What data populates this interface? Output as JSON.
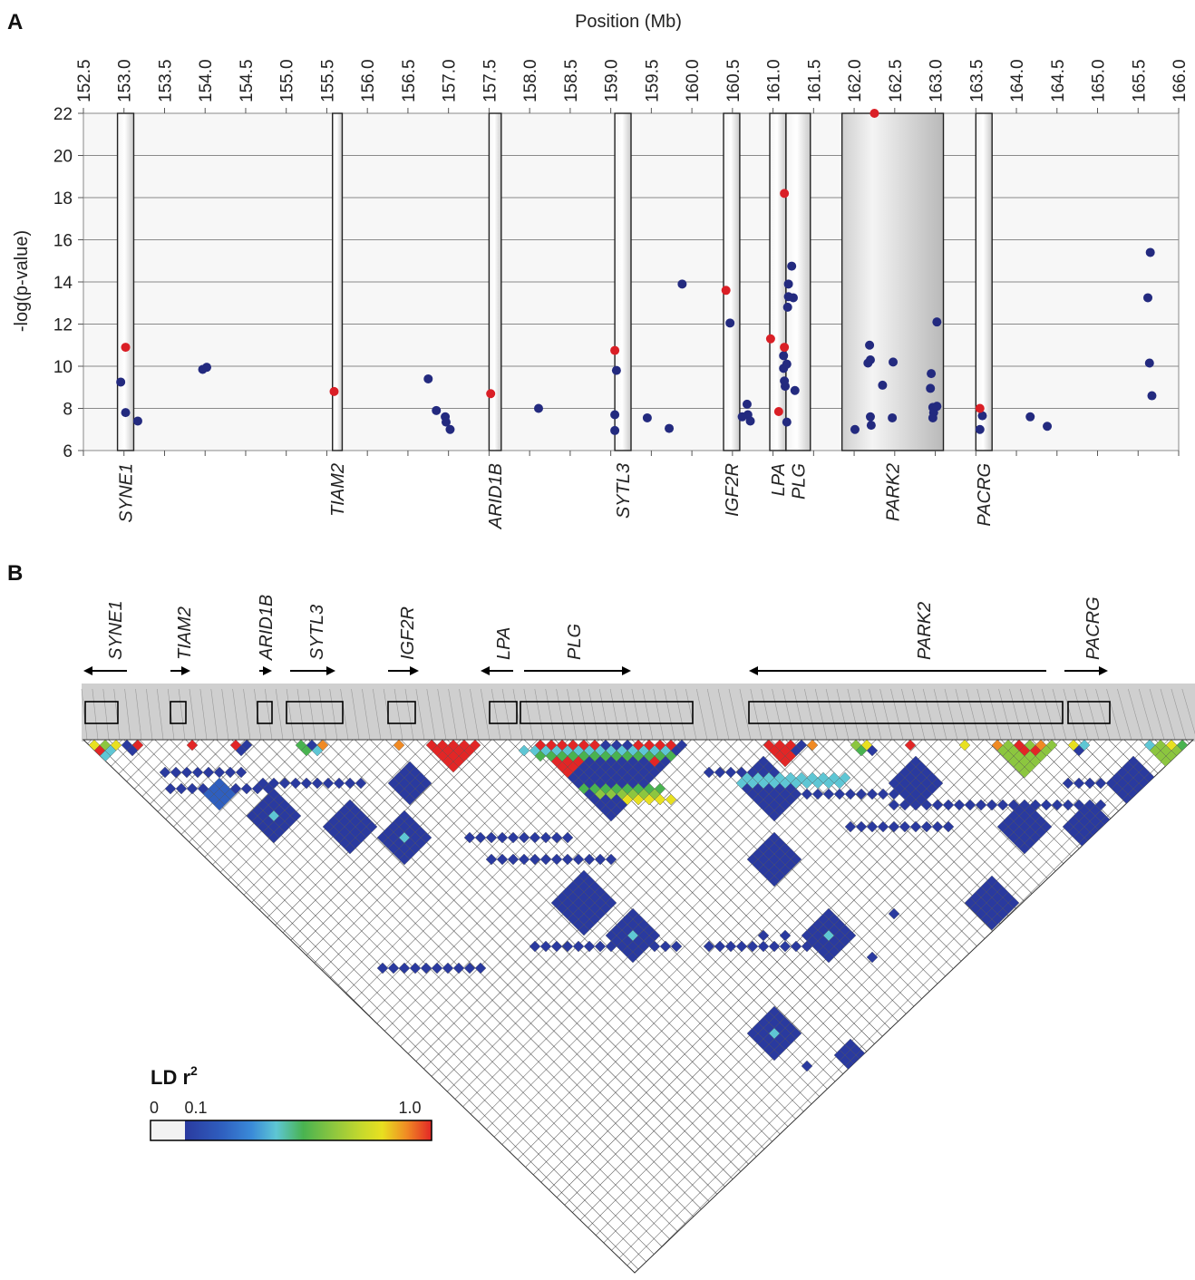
{
  "panels": {
    "a_label": "A",
    "b_label": "B"
  },
  "colors": {
    "pos_snp": "#da1f26",
    "snp": "#232a7f",
    "ld_scale": [
      "#2a3a9f",
      "#2f5fbf",
      "#3a8ad8",
      "#5ec6d4",
      "#49b350",
      "#8cc63f",
      "#e8e020",
      "#f08a24",
      "#e22626"
    ]
  },
  "chart_data": [
    {
      "type": "scatter",
      "title": "",
      "xlabel": "Position (Mb)",
      "ylabel": "-log(p-value)",
      "xlim": [
        152.5,
        166.0
      ],
      "ylim": [
        6,
        22
      ],
      "x_ticks": [
        "152.5",
        "153.0",
        "153.5",
        "154.0",
        "154.5",
        "155.0",
        "155.5",
        "156.0",
        "156.5",
        "157.0",
        "157.5",
        "158.0",
        "158.5",
        "159.0",
        "159.5",
        "160.0",
        "160.5",
        "161.0",
        "161.5",
        "162.0",
        "162.5",
        "163.0",
        "163.5",
        "164.0",
        "164.5",
        "165.0",
        "165.5",
        "166.0"
      ],
      "y_ticks": [
        "6",
        "8",
        "10",
        "12",
        "14",
        "16",
        "18",
        "20",
        "22"
      ],
      "grid": "horizontal",
      "genes": [
        {
          "name": "SYNE1",
          "start": 152.92,
          "end": 153.12
        },
        {
          "name": "TIAM2",
          "start": 155.57,
          "end": 155.69
        },
        {
          "name": "ARID1B",
          "start": 157.5,
          "end": 157.65
        },
        {
          "name": "SYTL3",
          "start": 159.05,
          "end": 159.25
        },
        {
          "name": "IGF2R",
          "start": 160.39,
          "end": 160.59
        },
        {
          "name": "LPA",
          "start": 160.96,
          "end": 161.16
        },
        {
          "name": "PLG",
          "start": 161.16,
          "end": 161.46
        },
        {
          "name": "PARK2",
          "start": 161.85,
          "end": 163.1
        },
        {
          "name": "PACRG",
          "start": 163.5,
          "end": 163.7
        }
      ],
      "series": [
        {
          "color": "red",
          "points": [
            [
              153.02,
              10.9
            ],
            [
              155.59,
              8.8
            ],
            [
              157.52,
              8.7
            ],
            [
              159.05,
              10.75
            ],
            [
              160.42,
              13.6
            ],
            [
              160.97,
              11.3
            ],
            [
              161.07,
              7.85
            ],
            [
              161.14,
              18.2
            ],
            [
              161.14,
              10.9
            ],
            [
              162.25,
              22.0
            ],
            [
              163.55,
              8.0
            ]
          ]
        },
        {
          "color": "navy",
          "points": [
            [
              152.96,
              9.25
            ],
            [
              153.02,
              7.8
            ],
            [
              153.17,
              7.4
            ],
            [
              153.97,
              9.85
            ],
            [
              154.02,
              9.95
            ],
            [
              156.75,
              9.4
            ],
            [
              156.85,
              7.9
            ],
            [
              156.96,
              7.6
            ],
            [
              156.97,
              7.35
            ],
            [
              157.02,
              7.0
            ],
            [
              158.11,
              8.0
            ],
            [
              159.05,
              7.7
            ],
            [
              159.05,
              6.95
            ],
            [
              159.07,
              9.8
            ],
            [
              159.45,
              7.55
            ],
            [
              159.72,
              7.05
            ],
            [
              159.88,
              13.9
            ],
            [
              160.47,
              12.05
            ],
            [
              160.62,
              7.6
            ],
            [
              160.68,
              8.2
            ],
            [
              160.69,
              7.7
            ],
            [
              160.72,
              7.4
            ],
            [
              161.13,
              10.5
            ],
            [
              161.13,
              9.9
            ],
            [
              161.14,
              9.3
            ],
            [
              161.15,
              9.05
            ],
            [
              161.17,
              10.1
            ],
            [
              161.17,
              7.35
            ],
            [
              161.18,
              12.8
            ],
            [
              161.19,
              13.9
            ],
            [
              161.19,
              13.3
            ],
            [
              161.23,
              14.75
            ],
            [
              161.25,
              13.25
            ],
            [
              161.27,
              8.85
            ],
            [
              162.01,
              7.0
            ],
            [
              162.17,
              10.15
            ],
            [
              162.19,
              11.0
            ],
            [
              162.2,
              10.3
            ],
            [
              162.2,
              7.6
            ],
            [
              162.21,
              7.2
            ],
            [
              162.35,
              9.1
            ],
            [
              162.48,
              10.2
            ],
            [
              162.47,
              7.55
            ],
            [
              162.95,
              9.65
            ],
            [
              162.94,
              8.95
            ],
            [
              162.97,
              8.05
            ],
            [
              162.98,
              7.8
            ],
            [
              162.97,
              7.55
            ],
            [
              163.02,
              12.1
            ],
            [
              163.02,
              8.1
            ],
            [
              163.55,
              7.0
            ],
            [
              163.58,
              7.65
            ],
            [
              164.17,
              7.6
            ],
            [
              164.38,
              7.15
            ],
            [
              165.65,
              15.4
            ],
            [
              165.62,
              13.25
            ],
            [
              165.64,
              10.15
            ],
            [
              165.67,
              8.6
            ]
          ]
        }
      ]
    },
    {
      "type": "heatmap",
      "title": "",
      "genes": [
        {
          "name": "SYNE1",
          "direction": "left"
        },
        {
          "name": "TIAM2",
          "direction": "right"
        },
        {
          "name": "ARID1B",
          "direction": "right"
        },
        {
          "name": "SYTL3",
          "direction": "right"
        },
        {
          "name": "IGF2R",
          "direction": "right"
        },
        {
          "name": "LPA",
          "direction": "left"
        },
        {
          "name": "PLG",
          "direction": "right"
        },
        {
          "name": "PARK2",
          "direction": "left"
        },
        {
          "name": "PACRG",
          "direction": "right"
        }
      ],
      "legend": {
        "title": "LD r",
        "title_sup": "2",
        "min_label": "0",
        "low_label": "0.1",
        "max_label": "1.0"
      }
    }
  ]
}
